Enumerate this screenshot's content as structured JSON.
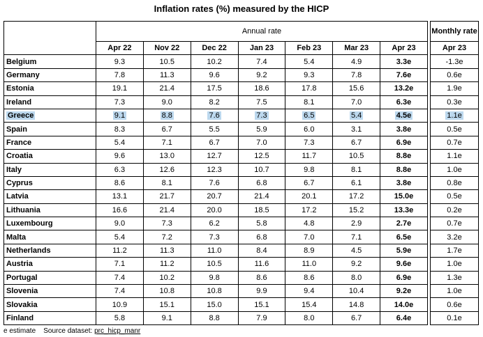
{
  "header": {
    "title": "Inflation rates (%) measured by the HICP"
  },
  "table": {
    "annual_label": "Annual rate",
    "columns": [
      "Apr 22",
      "Nov 22",
      "Dec 22",
      "Jan 23",
      "Feb 23",
      "Mar 23",
      "Apr 23"
    ],
    "monthly_label": "Monthly rate",
    "monthly_column": "Apr 23",
    "rows": [
      {
        "country": "Belgium",
        "values": [
          "9.3",
          "10.5",
          "10.2",
          "7.4",
          "5.4",
          "4.9",
          "3.3e"
        ],
        "monthly": "-1.3e"
      },
      {
        "country": "Germany",
        "values": [
          "7.8",
          "11.3",
          "9.6",
          "9.2",
          "9.3",
          "7.8",
          "7.6e"
        ],
        "monthly": "0.6e"
      },
      {
        "country": "Estonia",
        "values": [
          "19.1",
          "21.4",
          "17.5",
          "18.6",
          "17.8",
          "15.6",
          "13.2e"
        ],
        "monthly": "1.9e"
      },
      {
        "country": "Ireland",
        "values": [
          "7.3",
          "9.0",
          "8.2",
          "7.5",
          "8.1",
          "7.0",
          "6.3e"
        ],
        "monthly": "0.3e"
      },
      {
        "country": "Greece",
        "values": [
          "9.1",
          "8.8",
          "7.6",
          "7.3",
          "6.5",
          "5.4",
          "4.5e"
        ],
        "monthly": "1.1e",
        "highlight": true
      },
      {
        "country": "Spain",
        "values": [
          "8.3",
          "6.7",
          "5.5",
          "5.9",
          "6.0",
          "3.1",
          "3.8e"
        ],
        "monthly": "0.5e"
      },
      {
        "country": "France",
        "values": [
          "5.4",
          "7.1",
          "6.7",
          "7.0",
          "7.3",
          "6.7",
          "6.9e"
        ],
        "monthly": "0.7e"
      },
      {
        "country": "Croatia",
        "values": [
          "9.6",
          "13.0",
          "12.7",
          "12.5",
          "11.7",
          "10.5",
          "8.8e"
        ],
        "monthly": "1.1e"
      },
      {
        "country": "Italy",
        "values": [
          "6.3",
          "12.6",
          "12.3",
          "10.7",
          "9.8",
          "8.1",
          "8.8e"
        ],
        "monthly": "1.0e"
      },
      {
        "country": "Cyprus",
        "values": [
          "8.6",
          "8.1",
          "7.6",
          "6.8",
          "6.7",
          "6.1",
          "3.8e"
        ],
        "monthly": "0.8e"
      },
      {
        "country": "Latvia",
        "values": [
          "13.1",
          "21.7",
          "20.7",
          "21.4",
          "20.1",
          "17.2",
          "15.0e"
        ],
        "monthly": "0.5e"
      },
      {
        "country": "Lithuania",
        "values": [
          "16.6",
          "21.4",
          "20.0",
          "18.5",
          "17.2",
          "15.2",
          "13.3e"
        ],
        "monthly": "0.2e"
      },
      {
        "country": "Luxembourg",
        "values": [
          "9.0",
          "7.3",
          "6.2",
          "5.8",
          "4.8",
          "2.9",
          "2.7e"
        ],
        "monthly": "0.7e"
      },
      {
        "country": "Malta",
        "values": [
          "5.4",
          "7.2",
          "7.3",
          "6.8",
          "7.0",
          "7.1",
          "6.5e"
        ],
        "monthly": "3.2e"
      },
      {
        "country": "Netherlands",
        "values": [
          "11.2",
          "11.3",
          "11.0",
          "8.4",
          "8.9",
          "4.5",
          "5.9e"
        ],
        "monthly": "1.7e"
      },
      {
        "country": "Austria",
        "values": [
          "7.1",
          "11.2",
          "10.5",
          "11.6",
          "11.0",
          "9.2",
          "9.6e"
        ],
        "monthly": "1.0e"
      },
      {
        "country": "Portugal",
        "values": [
          "7.4",
          "10.2",
          "9.8",
          "8.6",
          "8.6",
          "8.0",
          "6.9e"
        ],
        "monthly": "1.3e"
      },
      {
        "country": "Slovenia",
        "values": [
          "7.4",
          "10.8",
          "10.8",
          "9.9",
          "9.4",
          "10.4",
          "9.2e"
        ],
        "monthly": "1.0e"
      },
      {
        "country": "Slovakia",
        "values": [
          "10.9",
          "15.1",
          "15.0",
          "15.1",
          "15.4",
          "14.8",
          "14.0e"
        ],
        "monthly": "0.6e"
      },
      {
        "country": "Finland",
        "values": [
          "5.8",
          "9.1",
          "8.8",
          "7.9",
          "8.0",
          "6.7",
          "6.4e"
        ],
        "monthly": "0.1e"
      }
    ]
  },
  "footer": {
    "note": "e estimate",
    "source_label": "Source dataset:",
    "source_link": "prc_hicp_manr"
  }
}
